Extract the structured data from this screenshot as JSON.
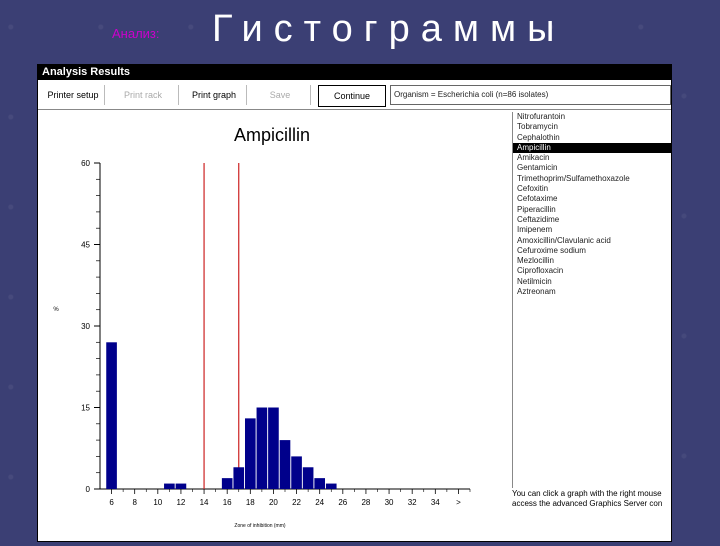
{
  "slide": {
    "subtitle": "Анализ:",
    "title": "Гистограммы"
  },
  "window": {
    "title": "Analysis Results"
  },
  "toolbar": {
    "buttons": [
      {
        "label": "Printer setup",
        "enabled": true
      },
      {
        "label": "Print rack",
        "enabled": false
      },
      {
        "label": "Print graph",
        "enabled": true
      },
      {
        "label": "Save",
        "enabled": false
      },
      {
        "label": "Continue",
        "enabled": true
      }
    ],
    "organism_text": "Organism = Escherichia coli   (n=86 isolates)"
  },
  "drug_list": {
    "items": [
      "Nitrofurantoin",
      "Tobramycin",
      "Cephalothin",
      "Ampicillin",
      "Amikacin",
      "Gentamicin",
      "Trimethoprim/Sulfamethoxazole",
      "Cefoxitin",
      "Cefotaxime",
      "Piperacillin",
      "Ceftazidime",
      "Imipenem",
      "Amoxicillin/Clavulanic acid",
      "Cefuroxime sodium",
      "Mezlocillin",
      "Ciprofloxacin",
      "Netilmicin",
      "Aztreonam"
    ],
    "selected": "Ampicillin"
  },
  "info_text": {
    "line1": "You can click a graph with the right mouse",
    "line2": "access the advanced Graphics Server con"
  },
  "chart_data": {
    "type": "bar",
    "title": "Ampicillin",
    "xlabel": "Zone of inhibition (mm)",
    "ylabel": "%",
    "x_tick_labels": [
      "6",
      "8",
      "10",
      "12",
      "14",
      "16",
      "18",
      "20",
      "22",
      "24",
      "26",
      "28",
      "30",
      "32",
      "34",
      ">"
    ],
    "y_ticks": [
      0,
      15,
      30,
      45,
      60
    ],
    "ylim": [
      0,
      60
    ],
    "x_range": [
      5,
      37
    ],
    "bars": [
      {
        "x": 6,
        "value": 27
      },
      {
        "x": 11,
        "value": 1
      },
      {
        "x": 12,
        "value": 1
      },
      {
        "x": 16,
        "value": 2
      },
      {
        "x": 17,
        "value": 4
      },
      {
        "x": 18,
        "value": 13
      },
      {
        "x": 19,
        "value": 15
      },
      {
        "x": 20,
        "value": 15
      },
      {
        "x": 21,
        "value": 9
      },
      {
        "x": 22,
        "value": 6
      },
      {
        "x": 23,
        "value": 4
      },
      {
        "x": 24,
        "value": 2
      },
      {
        "x": 25,
        "value": 1
      }
    ],
    "breakpoints": [
      14,
      17
    ],
    "colors": {
      "bar": "#00008b",
      "breakpoint": "#cc2222"
    }
  }
}
